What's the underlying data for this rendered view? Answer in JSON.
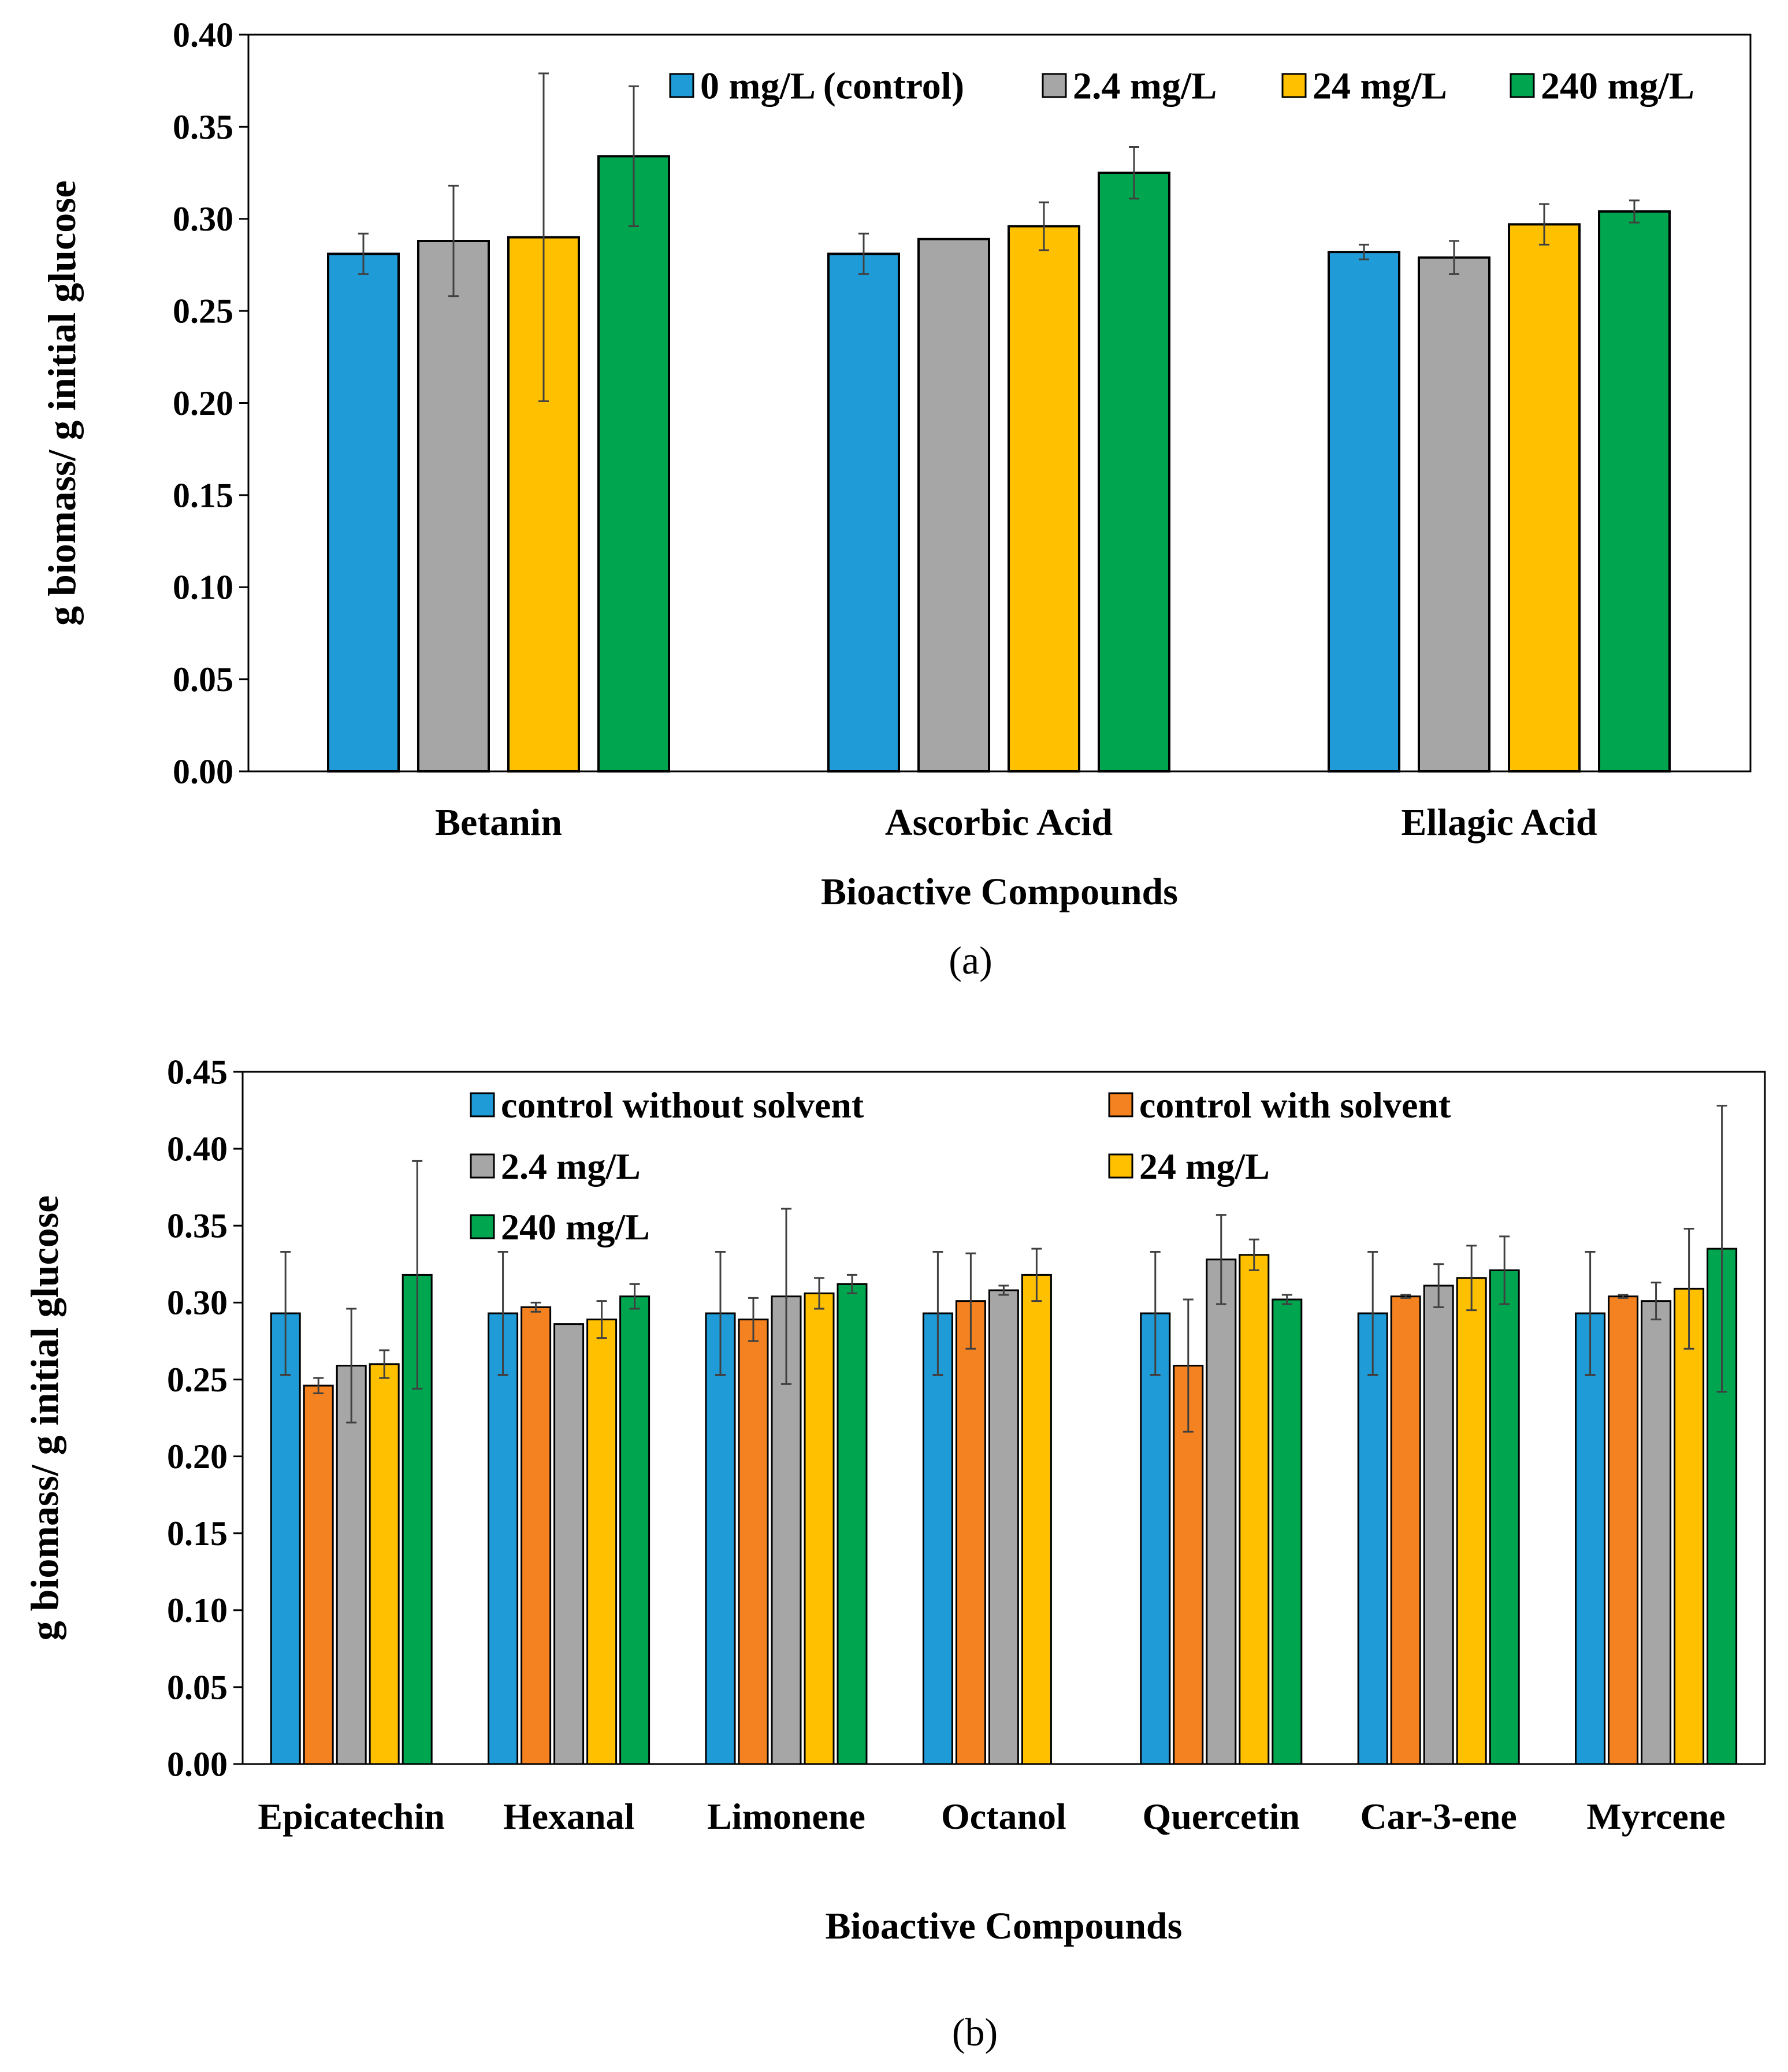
{
  "chart_data": [
    {
      "type": "bar",
      "panel_label": "(a)",
      "xlabel": "Bioactive Compounds",
      "ylabel": "g biomass/ g initial glucose",
      "ylim": [
        0,
        0.4
      ],
      "yticks": [
        "0.00",
        "0.05",
        "0.10",
        "0.15",
        "0.20",
        "0.25",
        "0.30",
        "0.35",
        "0.40"
      ],
      "categories": [
        "Betanin",
        "Ascorbic Acid",
        "Ellagic Acid"
      ],
      "legend_position": "top-right",
      "series": [
        {
          "name": "0 mg/L (control)",
          "color": "#1F9BD7",
          "values": [
            0.281,
            0.281,
            0.282
          ],
          "errors": [
            0.011,
            0.011,
            0.004
          ]
        },
        {
          "name": "2.4 mg/L",
          "color": "#A6A6A6",
          "values": [
            0.288,
            0.289,
            0.279
          ],
          "errors": [
            0.03,
            0.0,
            0.009
          ]
        },
        {
          "name": "24 mg/L",
          "color": "#FFC000",
          "values": [
            0.29,
            0.296,
            0.297
          ],
          "errors": [
            0.089,
            0.013,
            0.011
          ]
        },
        {
          "name": "240 mg/L",
          "color": "#00A550",
          "values": [
            0.334,
            0.325,
            0.304
          ],
          "errors": [
            0.038,
            0.014,
            0.006
          ]
        }
      ]
    },
    {
      "type": "bar",
      "panel_label": "(b)",
      "xlabel": "Bioactive Compounds",
      "ylabel": "g biomass/ g initial glucose",
      "ylim": [
        0,
        0.45
      ],
      "yticks": [
        "0.00",
        "0.05",
        "0.10",
        "0.15",
        "0.20",
        "0.25",
        "0.30",
        "0.35",
        "0.40",
        "0.45"
      ],
      "categories": [
        "Epicatechin",
        "Hexanal",
        "Limonene",
        "Octanol",
        "Quercetin",
        "Car-3-ene",
        "Myrcene"
      ],
      "legend_position": "top",
      "series": [
        {
          "name": "control without solvent",
          "color": "#1F9BD7",
          "values": [
            0.293,
            0.293,
            0.293,
            0.293,
            0.293,
            0.293,
            0.293
          ],
          "errors": [
            0.04,
            0.04,
            0.04,
            0.04,
            0.04,
            0.04,
            0.04
          ]
        },
        {
          "name": "control with solvent",
          "color": "#F58220",
          "values": [
            0.246,
            0.297,
            0.289,
            0.301,
            0.259,
            0.304,
            0.304
          ],
          "errors": [
            0.005,
            0.003,
            0.014,
            0.031,
            0.043,
            0.001,
            0.001
          ]
        },
        {
          "name": "2.4 mg/L",
          "color": "#A6A6A6",
          "values": [
            0.259,
            0.286,
            0.304,
            0.308,
            0.328,
            0.311,
            0.301
          ],
          "errors": [
            0.037,
            0.0,
            0.057,
            0.003,
            0.029,
            0.014,
            0.012
          ]
        },
        {
          "name": "24 mg/L",
          "color": "#FFC000",
          "values": [
            0.26,
            0.289,
            0.306,
            0.318,
            0.331,
            0.316,
            0.309
          ],
          "errors": [
            0.009,
            0.012,
            0.01,
            0.017,
            0.01,
            0.021,
            0.039
          ]
        },
        {
          "name": "240 mg/L",
          "color": "#00A550",
          "values": [
            0.318,
            0.304,
            0.312,
            null,
            0.302,
            0.321,
            0.335
          ],
          "errors": [
            0.074,
            0.008,
            0.006,
            null,
            0.003,
            0.022,
            0.093
          ]
        }
      ]
    }
  ]
}
